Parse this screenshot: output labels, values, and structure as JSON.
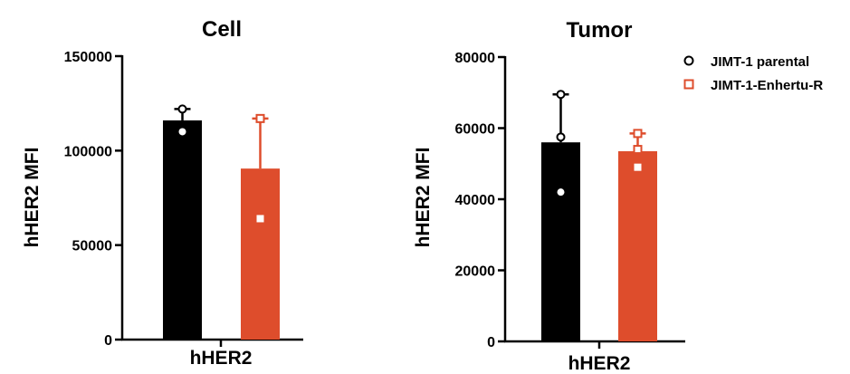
{
  "chart_data": [
    {
      "type": "bar",
      "title": "Cell",
      "ylabel": "hHER2 MFI",
      "xlabel": "",
      "categories": [
        "hHER2"
      ],
      "ylim": [
        0,
        150000
      ],
      "yticks": [
        0,
        50000,
        100000,
        150000
      ],
      "series": [
        {
          "name": "JIMT-1 parental",
          "color": "#000000",
          "mean": 116000,
          "error_upper": 122000,
          "points": [
            122000,
            110000
          ]
        },
        {
          "name": "JIMT-1-Enhertu-R",
          "color": "#de4d2c",
          "mean": 90500,
          "error_upper": 117000,
          "points": [
            117000,
            64000
          ]
        }
      ]
    },
    {
      "type": "bar",
      "title": "Tumor",
      "ylabel": "hHER2 MFI",
      "xlabel": "",
      "categories": [
        "hHER2"
      ],
      "ylim": [
        0,
        80000
      ],
      "yticks": [
        0,
        20000,
        40000,
        60000,
        80000
      ],
      "series": [
        {
          "name": "JIMT-1 parental",
          "color": "#000000",
          "mean": 56000,
          "error_upper": 69500,
          "points": [
            69500,
            57500,
            42000
          ]
        },
        {
          "name": "JIMT-1-Enhertu-R",
          "color": "#de4d2c",
          "mean": 53500,
          "error_upper": 58500,
          "points": [
            58500,
            54000,
            49000
          ]
        }
      ]
    }
  ],
  "legend": {
    "placement": "top-right",
    "items": [
      {
        "label": "JIMT-1 parental",
        "marker": "circle",
        "color": "#000000"
      },
      {
        "label": "JIMT-1-Enhertu-R",
        "marker": "square",
        "color": "#de4d2c"
      }
    ]
  }
}
